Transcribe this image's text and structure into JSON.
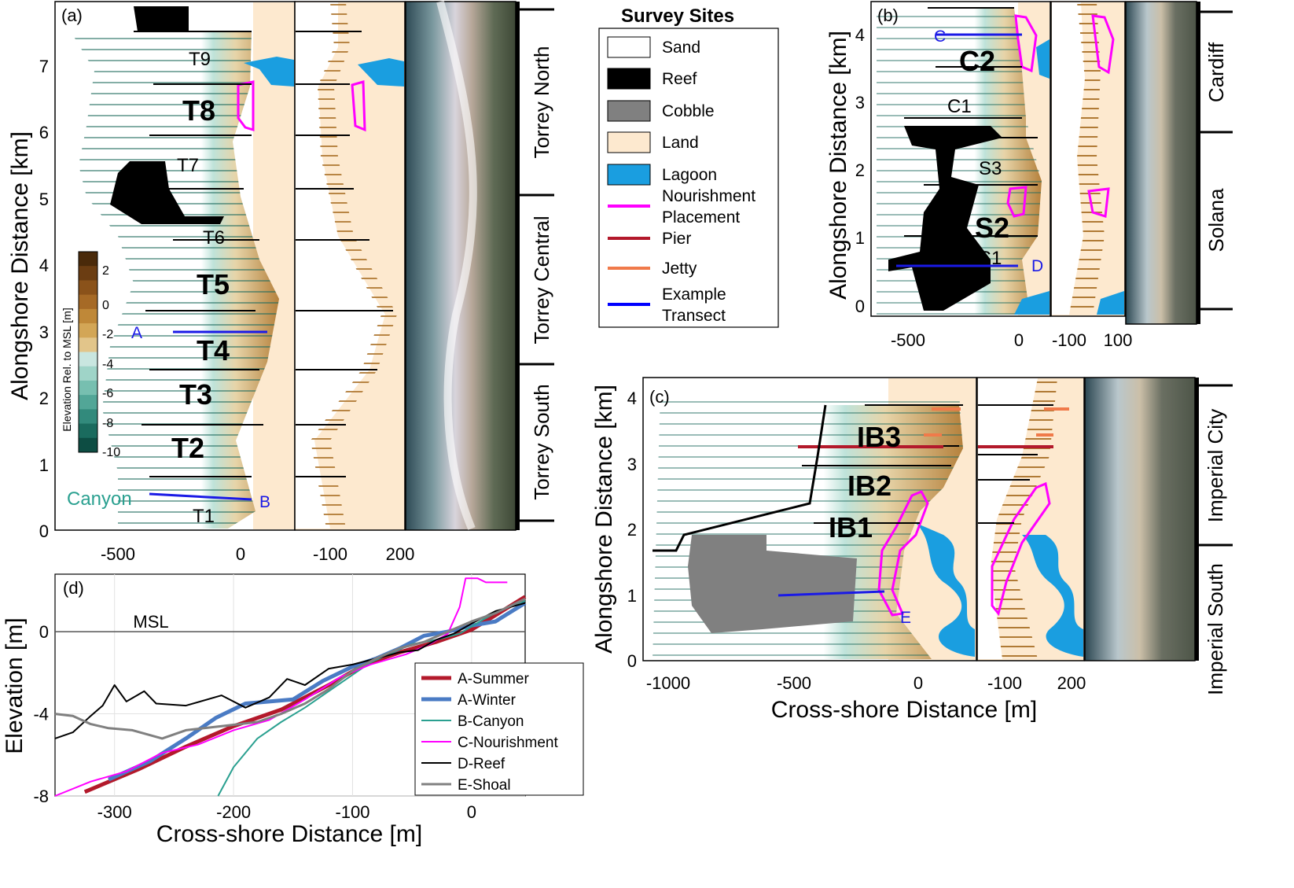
{
  "panel_a": {
    "label": "(a)",
    "y_title": "Alongshore Distance [km]",
    "y_ticks": [
      "0",
      "1",
      "2",
      "3",
      "4",
      "5",
      "6",
      "7"
    ],
    "x_ticks": [
      "-500",
      "0"
    ],
    "x_ticks_2": [
      "-100",
      "200"
    ],
    "sites_small": [
      "T9",
      "T7",
      "T6",
      "T1"
    ],
    "sites_big": [
      "T8",
      "T5",
      "T4",
      "T3",
      "T2"
    ],
    "canyon": "Canyon",
    "transect_A": "A",
    "transect_B": "B",
    "regions": [
      "Torrey North",
      "Torrey Central",
      "Torrey South"
    ],
    "colorbar": {
      "title": "Elevation Rel. to MSL [m]",
      "ticks": [
        "2",
        "0",
        "-2",
        "-4",
        "-6",
        "-8",
        "-10"
      ],
      "colors": [
        "#4a2a0a",
        "#6b3d12",
        "#8a521a",
        "#a66a26",
        "#bf8838",
        "#d3a656",
        "#e2c58a",
        "#c9e6e0",
        "#9fd4c8",
        "#77bfb0",
        "#52a697",
        "#328a7c",
        "#1a6b5e",
        "#0d4d43"
      ]
    }
  },
  "panel_b": {
    "label": "(b)",
    "y_title": "Alongshore Distance [km]",
    "y_ticks": [
      "0",
      "1",
      "2",
      "3",
      "4"
    ],
    "x_ticks": [
      "-500",
      "0"
    ],
    "x_ticks_2": [
      "-100",
      "100"
    ],
    "sites_small": [
      "C1",
      "S3",
      "S1"
    ],
    "sites_big": [
      "C2",
      "S2"
    ],
    "transect_C": "C",
    "transect_D": "D",
    "regions": [
      "Cardiff",
      "Solana"
    ]
  },
  "panel_c": {
    "label": "(c)",
    "y_title": "Alongshore Distance [km]",
    "x_title": "Cross-shore Distance [m]",
    "y_ticks": [
      "0",
      "1",
      "2",
      "3",
      "4"
    ],
    "x_ticks": [
      "-1000",
      "-500",
      "0"
    ],
    "x_ticks_2": [
      "-100",
      "200"
    ],
    "sites_big": [
      "IB3",
      "IB2",
      "IB1"
    ],
    "transect_E": "E",
    "regions": [
      "Imperial City",
      "Imperial South"
    ]
  },
  "legend": {
    "title": "Survey Sites",
    "items": [
      {
        "label": "Sand",
        "color": "#ffffff"
      },
      {
        "label": "Reef",
        "color": "#000000"
      },
      {
        "label": "Cobble",
        "color": "#808080"
      },
      {
        "label": "Land",
        "color": "#fde9cf"
      },
      {
        "label": "Lagoon",
        "color": "#1a9ee0"
      },
      {
        "label": "Nourishment",
        "label2": "Placement",
        "color": "#ff00ff"
      },
      {
        "label": "Pier",
        "color": "#b3192b"
      },
      {
        "label": "Jetty",
        "color": "#f07a4a"
      },
      {
        "label": "Example",
        "label2": "Transect",
        "color": "#0000ff"
      }
    ]
  },
  "chart_data": {
    "type": "line",
    "panel_label": "(d)",
    "xlabel": "Cross-shore Distance [m]",
    "ylabel": "Elevation [m]",
    "xlim": [
      -350,
      45
    ],
    "ylim": [
      -8,
      2.8
    ],
    "xticks": [
      -300,
      -200,
      -100,
      0
    ],
    "yticks": [
      -8,
      -4,
      0
    ],
    "annotation": "MSL",
    "grid": true,
    "legend_position": "bottom-right",
    "series": [
      {
        "name": "A-Summer",
        "color": "#b3192b",
        "width": 5,
        "points": [
          [
            -325,
            -7.8
          ],
          [
            -280,
            -6.7
          ],
          [
            -240,
            -5.6
          ],
          [
            -200,
            -4.6
          ],
          [
            -160,
            -3.8
          ],
          [
            -120,
            -2.6
          ],
          [
            -90,
            -1.6
          ],
          [
            -60,
            -1.0
          ],
          [
            -30,
            -0.5
          ],
          [
            0,
            0.1
          ],
          [
            20,
            0.8
          ],
          [
            45,
            1.7
          ]
        ]
      },
      {
        "name": "A-Winter",
        "color": "#4a7bc4",
        "width": 5,
        "points": [
          [
            -305,
            -7.2
          ],
          [
            -270,
            -6.3
          ],
          [
            -240,
            -5.2
          ],
          [
            -215,
            -4.2
          ],
          [
            -190,
            -3.5
          ],
          [
            -170,
            -3.4
          ],
          [
            -150,
            -3.3
          ],
          [
            -125,
            -2.4
          ],
          [
            -100,
            -1.7
          ],
          [
            -80,
            -1.3
          ],
          [
            -60,
            -0.8
          ],
          [
            -40,
            -0.2
          ],
          [
            -20,
            0.0
          ],
          [
            0,
            0.3
          ],
          [
            20,
            0.5
          ],
          [
            45,
            1.4
          ]
        ]
      },
      {
        "name": "B-Canyon",
        "color": "#2aa090",
        "width": 2,
        "points": [
          [
            -213,
            -8.0
          ],
          [
            -200,
            -6.6
          ],
          [
            -180,
            -5.2
          ],
          [
            -160,
            -4.4
          ],
          [
            -140,
            -3.7
          ],
          [
            -120,
            -2.9
          ],
          [
            -100,
            -2.1
          ],
          [
            -85,
            -1.5
          ],
          [
            -70,
            -1.1
          ],
          [
            -50,
            -0.6
          ],
          [
            -30,
            -0.4
          ],
          [
            -10,
            -0.1
          ],
          [
            10,
            0.6
          ],
          [
            30,
            1.2
          ],
          [
            45,
            1.5
          ]
        ]
      },
      {
        "name": "C-Nourishment",
        "color": "#ff00ff",
        "width": 2,
        "points": [
          [
            -350,
            -8.0
          ],
          [
            -320,
            -7.3
          ],
          [
            -290,
            -6.8
          ],
          [
            -260,
            -5.9
          ],
          [
            -230,
            -5.5
          ],
          [
            -200,
            -4.8
          ],
          [
            -170,
            -4.3
          ],
          [
            -140,
            -3.3
          ],
          [
            -110,
            -2.2
          ],
          [
            -85,
            -1.6
          ],
          [
            -55,
            -1.1
          ],
          [
            -35,
            -0.6
          ],
          [
            -20,
            -0.1
          ],
          [
            -10,
            1.2
          ],
          [
            -5,
            2.6
          ],
          [
            5,
            2.6
          ],
          [
            12,
            2.4
          ],
          [
            30,
            2.4
          ]
        ]
      },
      {
        "name": "D-Reef",
        "color": "#000000",
        "width": 2,
        "points": [
          [
            -350,
            -5.2
          ],
          [
            -335,
            -4.9
          ],
          [
            -320,
            -4.1
          ],
          [
            -310,
            -3.6
          ],
          [
            -300,
            -2.6
          ],
          [
            -290,
            -3.4
          ],
          [
            -275,
            -2.9
          ],
          [
            -265,
            -3.5
          ],
          [
            -240,
            -3.6
          ],
          [
            -210,
            -3.1
          ],
          [
            -190,
            -3.7
          ],
          [
            -170,
            -3.2
          ],
          [
            -155,
            -2.3
          ],
          [
            -140,
            -2.6
          ],
          [
            -120,
            -1.8
          ],
          [
            -100,
            -1.6
          ],
          [
            -80,
            -1.3
          ],
          [
            -60,
            -1.0
          ],
          [
            -45,
            -0.9
          ],
          [
            -30,
            -0.4
          ],
          [
            -15,
            -0.1
          ],
          [
            0,
            0.4
          ],
          [
            20,
            1.0
          ],
          [
            45,
            1.4
          ]
        ]
      },
      {
        "name": "E-Shoal",
        "color": "#808080",
        "width": 3,
        "points": [
          [
            -350,
            -4.0
          ],
          [
            -335,
            -4.1
          ],
          [
            -320,
            -4.5
          ],
          [
            -305,
            -4.7
          ],
          [
            -285,
            -4.8
          ],
          [
            -260,
            -5.2
          ],
          [
            -240,
            -4.8
          ],
          [
            -210,
            -4.6
          ],
          [
            -180,
            -4.4
          ],
          [
            -160,
            -4.0
          ],
          [
            -140,
            -3.5
          ],
          [
            -120,
            -2.8
          ],
          [
            -100,
            -1.9
          ],
          [
            -80,
            -1.3
          ],
          [
            -60,
            -0.8
          ],
          [
            -40,
            -0.5
          ],
          [
            -20,
            0.0
          ],
          [
            0,
            0.5
          ],
          [
            20,
            0.9
          ],
          [
            45,
            1.6
          ]
        ]
      }
    ]
  }
}
